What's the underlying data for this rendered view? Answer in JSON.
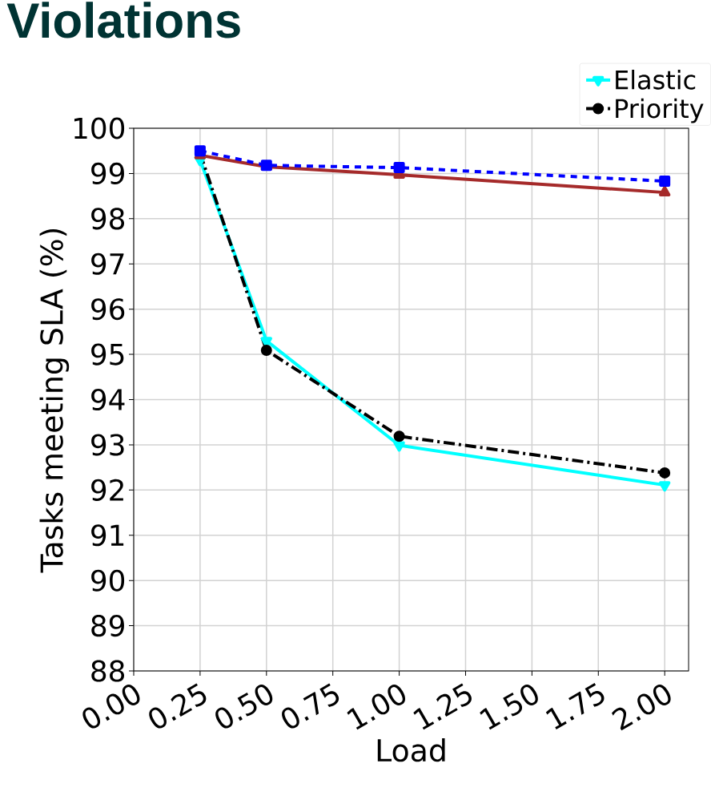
{
  "chart_data": {
    "type": "line",
    "title": "Violations",
    "xlabel": "Load",
    "ylabel": "Tasks meeting SLA (%)",
    "x": [
      0.25,
      0.5,
      1.0,
      2.0
    ],
    "series": [
      {
        "color": "#0000ff",
        "marker": "square",
        "line_style": "dotted",
        "values": [
          99.5,
          99.18,
          99.13,
          98.83
        ]
      },
      {
        "color": "#a52a2a",
        "marker": "triangle",
        "line_style": "solid",
        "values": [
          99.4,
          99.15,
          98.97,
          98.58
        ]
      },
      {
        "name": "Priority",
        "color": "#000000",
        "marker": "circle",
        "line_style": "dashdot",
        "values": [
          99.45,
          95.09,
          93.19,
          92.38
        ]
      },
      {
        "name": "Elastic",
        "color": "#00ffff",
        "marker": "triangle-down",
        "line_style": "solid",
        "values": [
          99.3,
          95.3,
          92.99,
          92.11
        ]
      }
    ],
    "xlim": [
      0,
      2.09
    ],
    "ylim": [
      88,
      100
    ],
    "xticks": [
      {
        "value": 0,
        "label": "0.00"
      },
      {
        "value": 0.25,
        "label": "0.25"
      },
      {
        "value": 0.5,
        "label": "0.50"
      },
      {
        "value": 0.75,
        "label": "0.75"
      },
      {
        "value": 1.0,
        "label": "1.00"
      },
      {
        "value": 1.25,
        "label": "1.25"
      },
      {
        "value": 1.5,
        "label": "1.50"
      },
      {
        "value": 1.75,
        "label": "1.75"
      },
      {
        "value": 2.0,
        "label": "2.00"
      }
    ],
    "yticks": [
      88,
      89,
      90,
      91,
      92,
      93,
      94,
      95,
      96,
      97,
      98,
      99,
      100
    ],
    "grid": true,
    "legend": "top right"
  }
}
